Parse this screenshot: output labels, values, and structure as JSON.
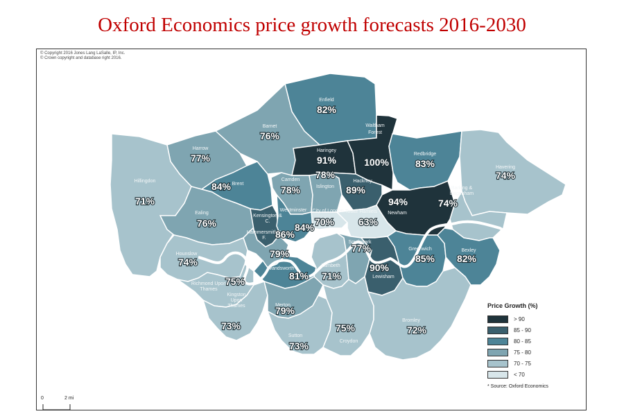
{
  "title": "Oxford Economics price growth forecasts 2016-2030",
  "copyright": [
    "© Copyright 2016 Jones Lang LaSalle, IP, Inc.",
    "© Crown copyright and database right 2016."
  ],
  "legend": {
    "title": "Price Growth (%)",
    "classes": [
      {
        "label": "> 90",
        "color": "#1f333b"
      },
      {
        "label": "85 - 90",
        "color": "#3a5f6d"
      },
      {
        "label": "80 - 85",
        "color": "#4d8497"
      },
      {
        "label": "75 - 80",
        "color": "#7fa5b1"
      },
      {
        "label": "70 - 75",
        "color": "#a7c3cc"
      },
      {
        "label": "< 70",
        "color": "#d8e6ea"
      }
    ],
    "source": "* Source: Oxford Economics"
  },
  "scale": {
    "zero": "0",
    "dist": "2 mi"
  },
  "river_color": "#ffffff",
  "boroughs": [
    {
      "name": "Enfield",
      "value": "82%",
      "color": "#4d8497"
    },
    {
      "name": "Barnet",
      "value": "76%",
      "color": "#7fa5b1"
    },
    {
      "name": "Haringey",
      "value": "91%",
      "color": "#1f333b"
    },
    {
      "name": "Waltham Forest",
      "value": "100%",
      "color": "#1f333b"
    },
    {
      "name": "Redbridge",
      "value": "83%",
      "color": "#4d8497"
    },
    {
      "name": "Havering",
      "value": "74%",
      "color": "#a7c3cc"
    },
    {
      "name": "Harrow",
      "value": "77%",
      "color": "#7fa5b1"
    },
    {
      "name": "Hillingdon",
      "value": "71%",
      "color": "#a7c3cc"
    },
    {
      "name": "Brent",
      "value": "84%",
      "color": "#4d8497"
    },
    {
      "name": "Camden",
      "value": "78%",
      "color": "#7fa5b1"
    },
    {
      "name": "Islington",
      "value": "78%",
      "color": "#7fa5b1"
    },
    {
      "name": "Hackney",
      "value": "89%",
      "color": "#3a5f6d"
    },
    {
      "name": "Barking & Dagenham",
      "value": "74%",
      "color": "#a7c3cc"
    },
    {
      "name": "Newham",
      "value": "94%",
      "color": "#1f333b"
    },
    {
      "name": "Ealing",
      "value": "76%",
      "color": "#7fa5b1"
    },
    {
      "name": "Kensington & C.",
      "value": "86%",
      "color": "#3a5f6d"
    },
    {
      "name": "Westminster",
      "value": "84%",
      "color": "#4d8497"
    },
    {
      "name": "City of London",
      "value": "70%",
      "color": "#d8e6ea"
    },
    {
      "name": "Tower Hamlets",
      "value": "63%",
      "color": "#d8e6ea"
    },
    {
      "name": "Hammersmith & F.",
      "value": "79%",
      "color": "#7fa5b1"
    },
    {
      "name": "Hounslow",
      "value": "74%",
      "color": "#a7c3cc"
    },
    {
      "name": "Richmond Upon Thames",
      "value": "75%",
      "color": "#a7c3cc"
    },
    {
      "name": "Wandsworth",
      "value": "81%",
      "color": "#4d8497"
    },
    {
      "name": "Lambeth",
      "value": "71%",
      "color": "#a7c3cc"
    },
    {
      "name": "Southwark",
      "value": "77%",
      "color": "#7fa5b1"
    },
    {
      "name": "Lewisham",
      "value": "90%",
      "color": "#3a5f6d"
    },
    {
      "name": "Greenwich",
      "value": "85%",
      "color": "#4d8497"
    },
    {
      "name": "Bexley",
      "value": "82%",
      "color": "#4d8497"
    },
    {
      "name": "Kingston Upon Thames",
      "value": "73%",
      "color": "#a7c3cc"
    },
    {
      "name": "Merton",
      "value": "79%",
      "color": "#7fa5b1"
    },
    {
      "name": "Sutton",
      "value": "73%",
      "color": "#a7c3cc"
    },
    {
      "name": "Croydon",
      "value": "75%",
      "color": "#a7c3cc"
    },
    {
      "name": "Bromley",
      "value": "72%",
      "color": "#a7c3cc"
    }
  ]
}
